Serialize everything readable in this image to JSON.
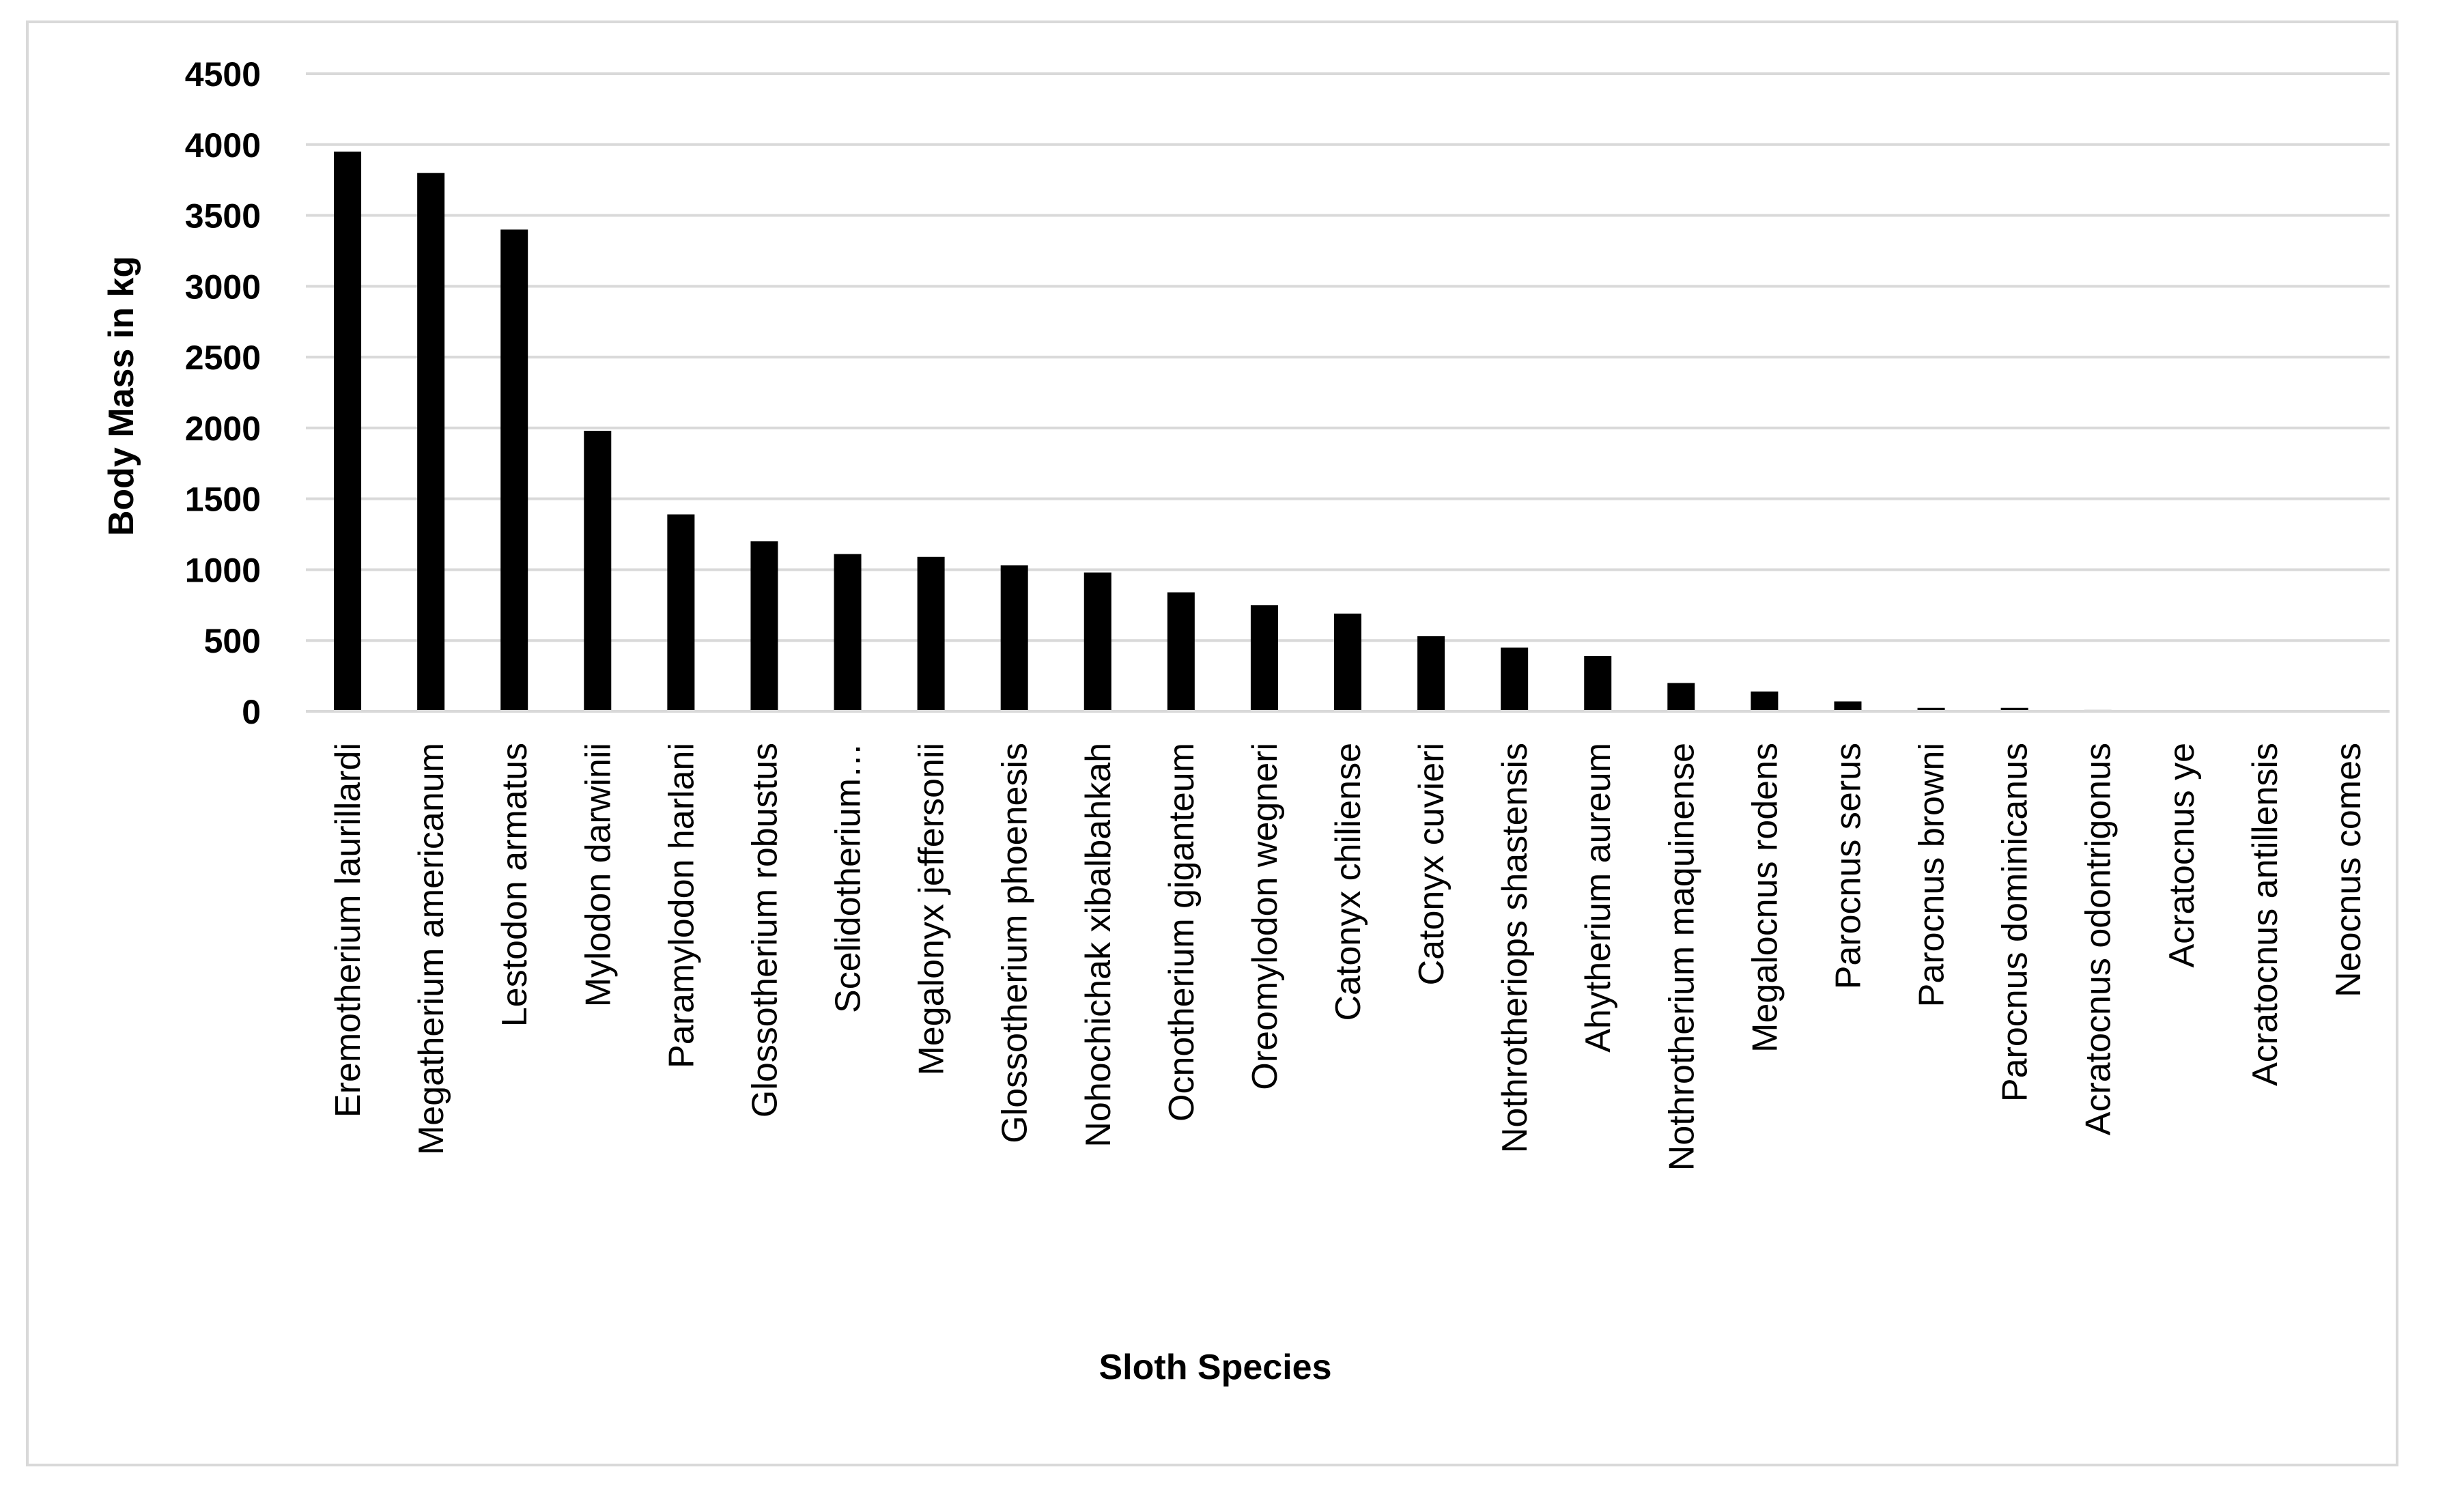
{
  "chart_data": {
    "type": "bar",
    "title": "",
    "xlabel": "Sloth Species",
    "ylabel": "Body Mass in kg",
    "ylim": [
      0,
      4500
    ],
    "yticks": [
      "0",
      "500",
      "1000",
      "1500",
      "2000",
      "2500",
      "3000",
      "3500",
      "4000",
      "4500"
    ],
    "grid": true,
    "legend": "none",
    "bar_color": "#000000",
    "grid_color": "#d9d9d9",
    "categories": [
      "Eremotherium laurillardi",
      "Megatherium americanum",
      "Lestodon armatus",
      "Mylodon darwinii",
      "Paramylodon harlani",
      "Glossotherium robustus",
      "Scelidotherium…",
      "Megalonyx jeffersonii",
      "Glossotherium phoenesis",
      "Nohochichak xibalbahkah",
      "Ocnotherium giganteum",
      "Oreomylodon wegneri",
      "Catonyx chiliense",
      "Catonyx cuvieri",
      "Nothrotheriops shastensis",
      "Ahytherium aureum",
      "Nothrotherium maquinense",
      "Megalocnus rodens",
      "Parocnus serus",
      "Parocnus browni",
      "Parocnus dominicanus",
      "Acratocnus odontrigonus",
      "Acratocnus ye",
      "Acratocnus antillensis",
      "Neocnus comes"
    ],
    "values": [
      3950,
      3800,
      3400,
      1980,
      1390,
      1200,
      1110,
      1090,
      1030,
      980,
      840,
      750,
      690,
      530,
      450,
      390,
      200,
      140,
      70,
      25,
      25,
      10,
      5,
      5,
      5
    ]
  }
}
